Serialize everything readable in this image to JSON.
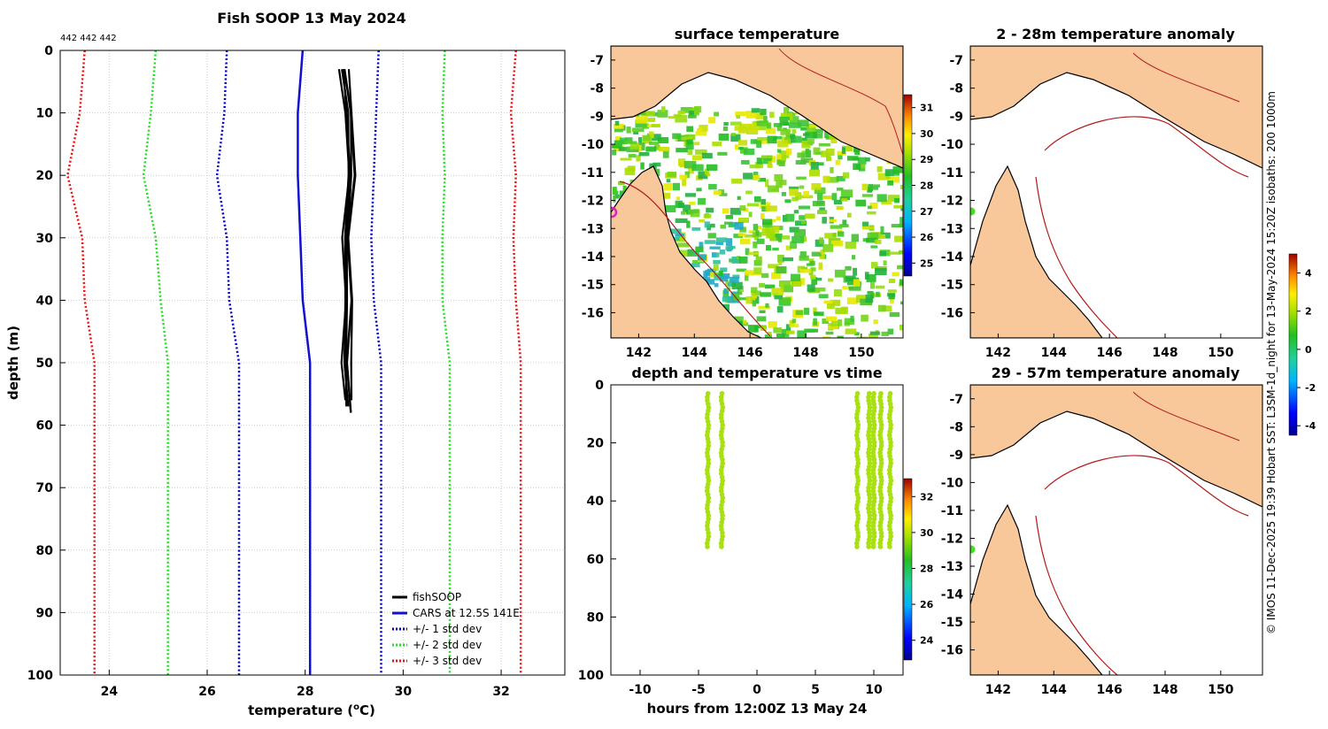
{
  "page": {
    "credit": "© IMOS 11-Dec-2025 19:39 Hobart SST: L3SM-1d_night for 13-May-2024 15:20Z isobaths: 200 1000m"
  },
  "colors": {
    "fishsoop": "#000000",
    "cars": "#1010d0",
    "std1": "#0000cc",
    "std2": "#22dd22",
    "std3": "#ee1111",
    "land": "#f8c89a",
    "isobath": "#b31b1b",
    "marker_green": "#44dd22",
    "marker_magenta": "#e020c0"
  },
  "chart_data": [
    {
      "type": "line",
      "title": "Fish SOOP 13 May 2024",
      "note": "442 442 442",
      "xlabel": "temperature (°C)",
      "xlabel_main": "temperature (",
      "xlabel_sup": "o",
      "xlabel_end": "C)",
      "ylabel": "depth (m)",
      "xlim": [
        23,
        33.3
      ],
      "ylim": [
        0,
        100
      ],
      "x_ticks": [
        24,
        26,
        28,
        30,
        32
      ],
      "y_ticks": [
        0,
        10,
        20,
        30,
        40,
        50,
        60,
        70,
        80,
        90,
        100
      ],
      "depth": [
        0,
        10,
        20,
        30,
        40,
        50,
        100
      ],
      "series": [
        {
          "name": "fishSOOP",
          "color": "#000000",
          "style": "solid",
          "values": [
            [
              28.8,
              3
            ],
            [
              28.9,
              10
            ],
            [
              28.95,
              20
            ],
            [
              28.85,
              30
            ],
            [
              28.9,
              40
            ],
            [
              28.85,
              50
            ],
            [
              28.9,
              57
            ]
          ]
        },
        {
          "name": "CARS at 12.5S 141E",
          "color": "#1010d0",
          "style": "solid",
          "temps": [
            27.95,
            27.85,
            27.85,
            27.9,
            27.95,
            28.1,
            28.1
          ]
        },
        {
          "name": "+/- 1 std dev",
          "color": "#0000cc",
          "style": "dotted",
          "lower": [
            26.4,
            26.35,
            26.2,
            26.4,
            26.45,
            26.65,
            26.65
          ],
          "upper": [
            29.5,
            29.45,
            29.4,
            29.35,
            29.4,
            29.55,
            29.55
          ]
        },
        {
          "name": "+/- 2 std dev",
          "color": "#22dd22",
          "style": "dotted",
          "lower": [
            24.95,
            24.85,
            24.7,
            24.95,
            25.05,
            25.2,
            25.2
          ],
          "upper": [
            30.85,
            30.8,
            30.85,
            30.8,
            30.8,
            30.95,
            30.95
          ]
        },
        {
          "name": "+/- 3 std dev",
          "color": "#ee1111",
          "style": "dotted",
          "lower": [
            23.5,
            23.4,
            23.15,
            23.45,
            23.5,
            23.7,
            23.7
          ],
          "upper": [
            32.3,
            32.2,
            32.3,
            32.25,
            32.3,
            32.4,
            32.4
          ]
        }
      ]
    },
    {
      "type": "heatmap",
      "title": "surface temperature",
      "x_ticks": [
        142,
        144,
        146,
        148,
        150
      ],
      "y_ticks": [
        -7,
        -8,
        -9,
        -10,
        -11,
        -12,
        -13,
        -14,
        -15,
        -16
      ],
      "xlim": [
        141,
        151.5
      ],
      "ylim": [
        -16.9,
        -6.5
      ],
      "colorbar_ticks": [
        31,
        30,
        29,
        28,
        27,
        26,
        25
      ],
      "colorbar_range": [
        24.5,
        31.5
      ]
    },
    {
      "type": "scatter",
      "title": "depth and temperature vs time",
      "xlabel": "hours from 12:00Z 13 May 24",
      "x_ticks": [
        -10,
        -5,
        0,
        5,
        10
      ],
      "y_ticks": [
        0,
        20,
        40,
        60,
        80,
        100
      ],
      "xlim": [
        -12.5,
        12.5
      ],
      "ylim": [
        0,
        100
      ],
      "casts_hours": [
        -4.2,
        -3.0,
        8.6,
        9.6,
        10.0,
        10.6,
        11.4
      ],
      "cast_max_depth": 57,
      "colorbar_ticks": [
        32,
        30,
        28,
        26,
        24
      ],
      "colorbar_range": [
        22.9,
        33.0
      ]
    },
    {
      "type": "heatmap",
      "title": "2 - 28m temperature anomaly",
      "x_ticks": [
        142,
        144,
        146,
        148,
        150
      ],
      "y_ticks": [
        -7,
        -8,
        -9,
        -10,
        -11,
        -12,
        -13,
        -14,
        -15,
        -16
      ],
      "colorbar_ticks": [
        4,
        2,
        0,
        -2,
        -4
      ],
      "colorbar_range": [
        -4.5,
        5.0
      ]
    },
    {
      "type": "heatmap",
      "title": "29 - 57m temperature anomaly",
      "x_ticks": [
        142,
        144,
        146,
        148,
        150
      ],
      "y_ticks": [
        -7,
        -8,
        -9,
        -10,
        -11,
        -12,
        -13,
        -14,
        -15,
        -16
      ]
    }
  ]
}
